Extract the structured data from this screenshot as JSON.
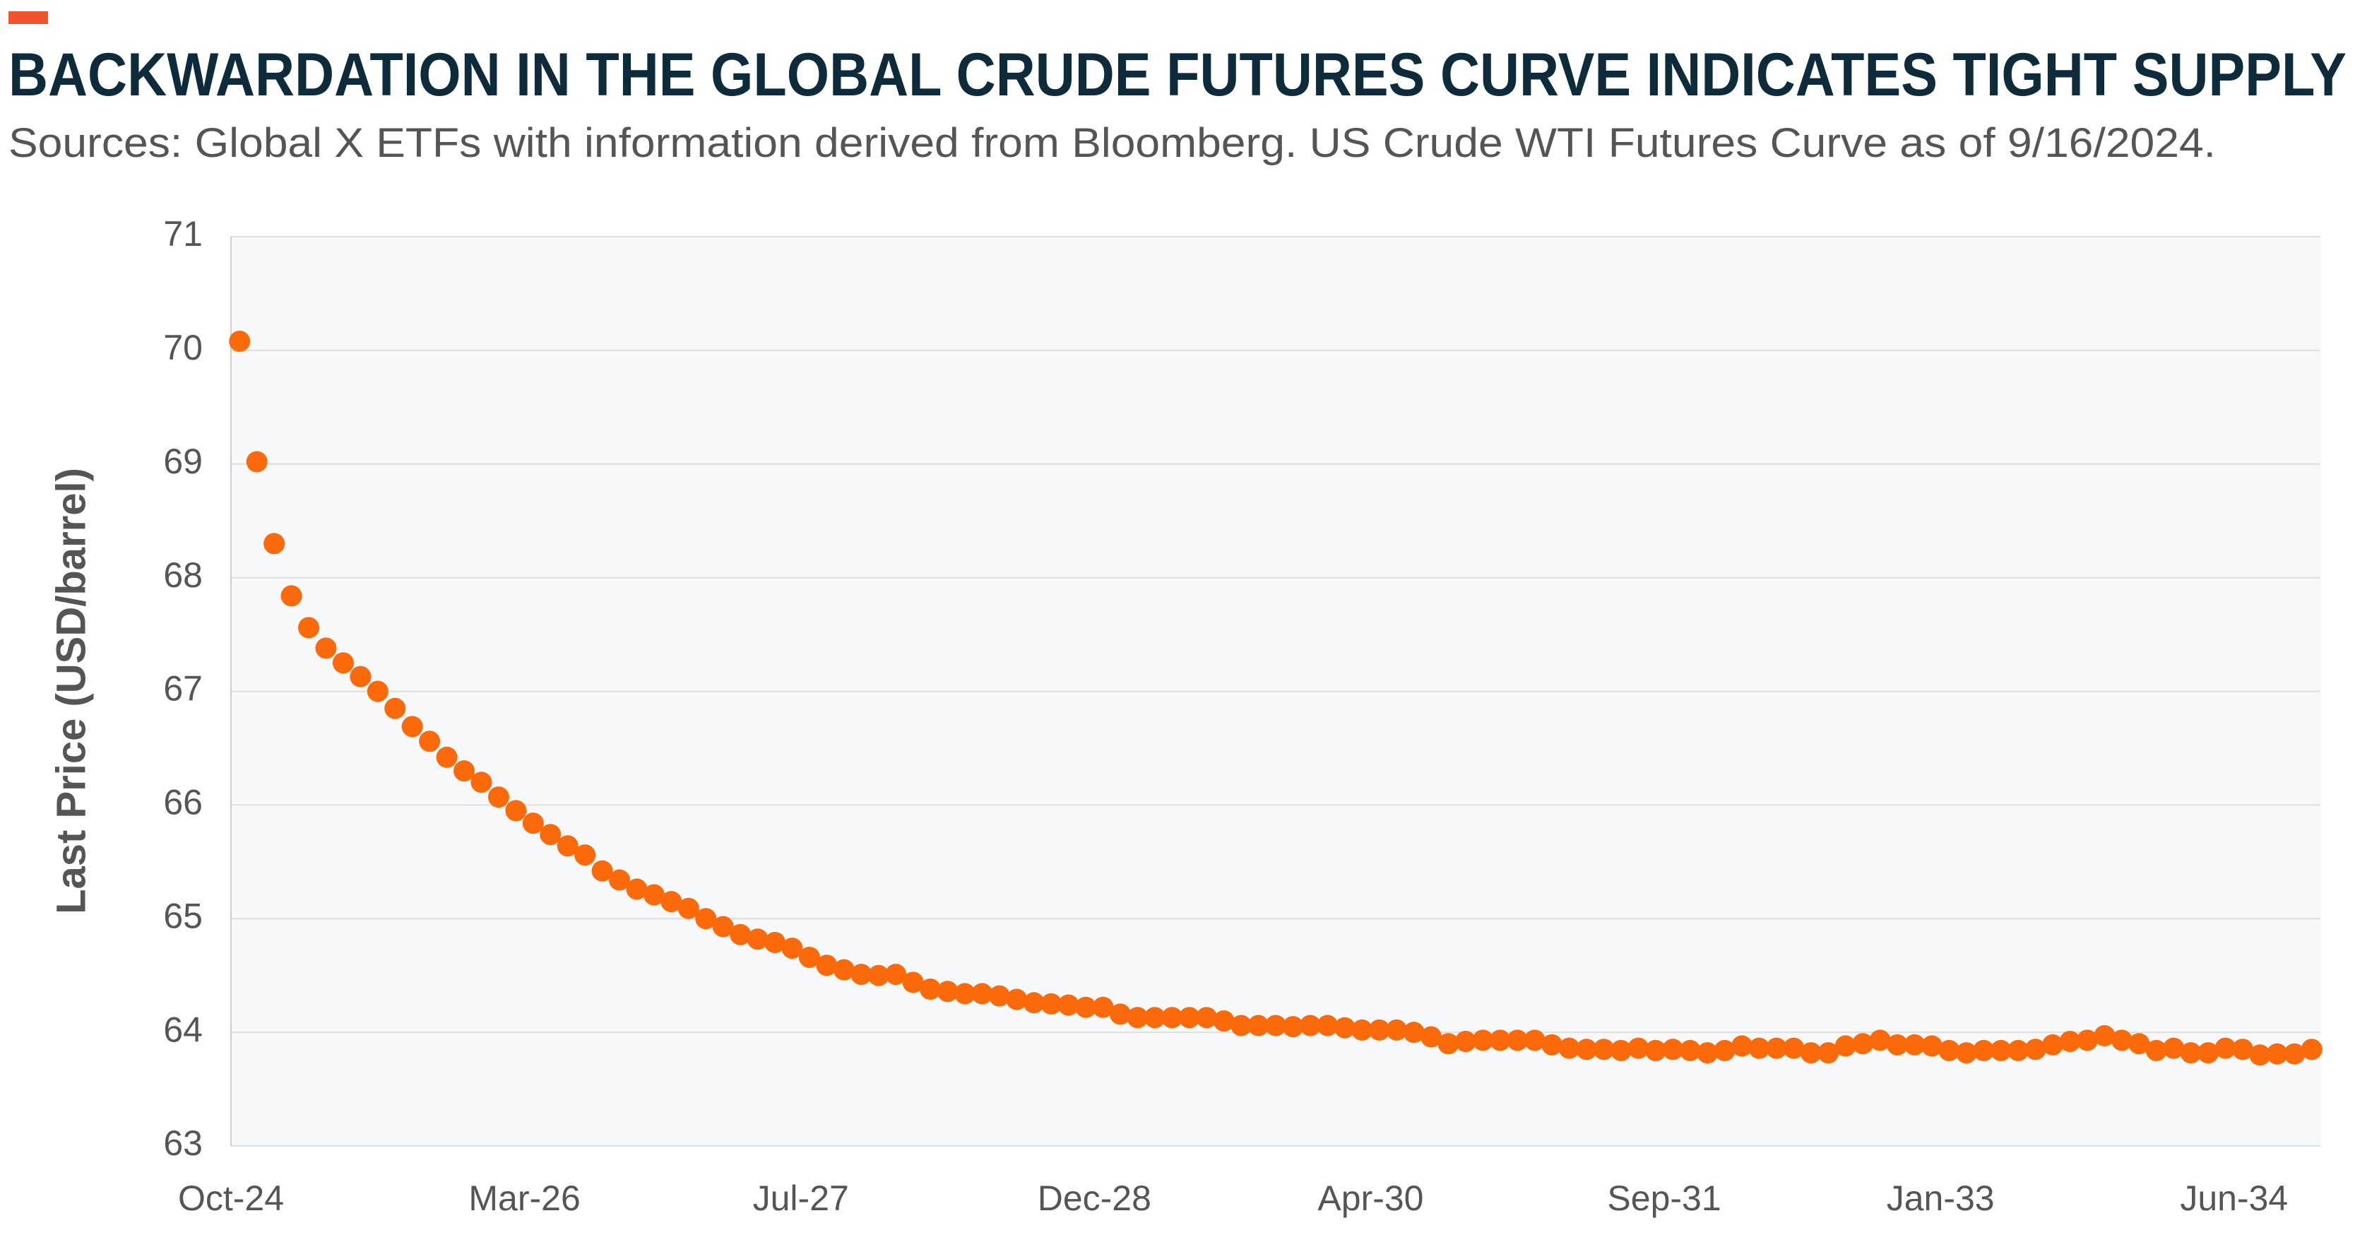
{
  "chart_data": {
    "type": "scatter",
    "title": "BACKWARDATION IN THE GLOBAL CRUDE FUTURES CURVE INDICATES TIGHT SUPPLY",
    "subtitle": "Sources: Global X ETFs with information derived from Bloomberg. US Crude WTI Futures Curve as of 9/16/2024.",
    "y_label": "Last Price (USD/barrel)",
    "categories": [
      "Oct-24",
      null,
      null,
      null,
      null,
      null,
      null,
      null,
      null,
      null,
      null,
      null,
      null,
      null,
      null,
      null,
      null,
      "Mar-26",
      null,
      null,
      null,
      null,
      null,
      null,
      null,
      null,
      null,
      null,
      null,
      null,
      null,
      null,
      null,
      "Jul-27",
      null,
      null,
      null,
      null,
      null,
      null,
      null,
      null,
      null,
      null,
      null,
      null,
      null,
      null,
      null,
      null,
      "Dec-28",
      null,
      null,
      null,
      null,
      null,
      null,
      null,
      null,
      null,
      null,
      null,
      null,
      null,
      null,
      null,
      "Apr-30",
      null,
      null,
      null,
      null,
      null,
      null,
      null,
      null,
      null,
      null,
      null,
      null,
      null,
      null,
      null,
      null,
      "Sep-31",
      null,
      null,
      null,
      null,
      null,
      null,
      null,
      null,
      null,
      null,
      null,
      null,
      null,
      null,
      null,
      "Jan-33",
      null,
      null,
      null,
      null,
      null,
      null,
      null,
      null,
      null,
      null,
      null,
      null,
      null,
      null,
      null,
      null,
      "Jun-34",
      null,
      null,
      null,
      null
    ],
    "values": [
      70.08,
      69.02,
      68.3,
      67.84,
      67.56,
      67.38,
      67.25,
      67.13,
      67.0,
      66.85,
      66.69,
      66.56,
      66.42,
      66.3,
      66.2,
      66.07,
      65.95,
      65.84,
      65.74,
      65.64,
      65.56,
      65.42,
      65.34,
      65.26,
      65.21,
      65.15,
      65.09,
      65.0,
      64.93,
      64.86,
      64.82,
      64.79,
      64.74,
      64.66,
      64.59,
      64.55,
      64.51,
      64.5,
      64.51,
      64.44,
      64.38,
      64.36,
      64.34,
      64.34,
      64.32,
      64.29,
      64.26,
      64.25,
      64.24,
      64.22,
      64.22,
      64.16,
      64.13,
      64.13,
      64.13,
      64.13,
      64.13,
      64.1,
      64.06,
      64.06,
      64.06,
      64.05,
      64.06,
      64.06,
      64.04,
      64.02,
      64.02,
      64.02,
      64.0,
      63.96,
      63.9,
      63.92,
      63.93,
      63.93,
      63.93,
      63.93,
      63.89,
      63.86,
      63.85,
      63.85,
      63.84,
      63.86,
      63.84,
      63.85,
      63.84,
      63.82,
      63.84,
      63.88,
      63.86,
      63.86,
      63.86,
      63.82,
      63.82,
      63.88,
      63.9,
      63.93,
      63.89,
      63.89,
      63.88,
      63.84,
      63.82,
      63.84,
      63.84,
      63.84,
      63.85,
      63.89,
      63.92,
      63.93,
      63.97,
      63.93,
      63.9,
      63.84,
      63.86,
      63.82,
      63.82,
      63.86,
      63.85,
      63.8,
      63.81,
      63.81,
      63.85
    ],
    "color": "#fa6a0a",
    "ylim": [
      63,
      71
    ],
    "yticks": [
      63,
      64,
      65,
      66,
      67,
      68,
      69,
      70,
      71
    ],
    "grid": true
  }
}
